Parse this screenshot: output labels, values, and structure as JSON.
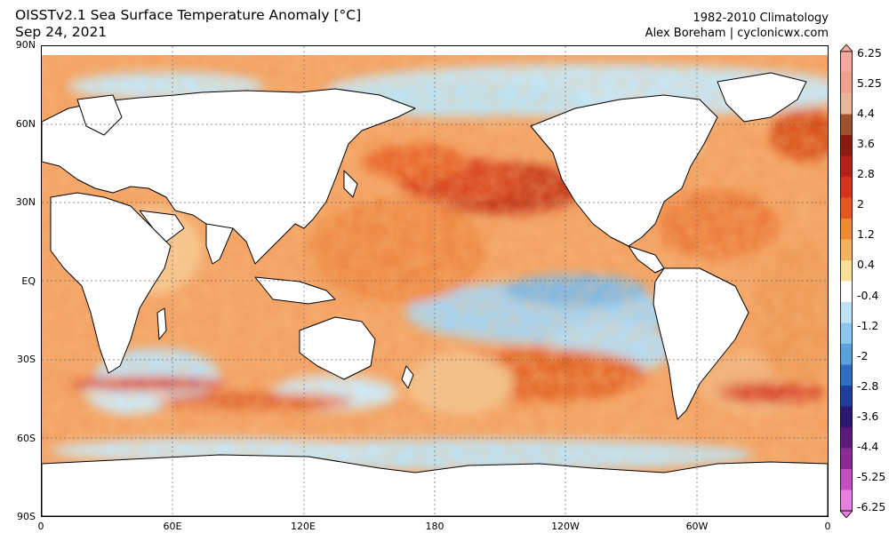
{
  "header": {
    "title": "OISSTv2.1 Sea Surface Temperature Anomaly [°C]",
    "date": "Sep 24, 2021",
    "climatology": "1982-2010 Climatology",
    "credit": "Alex Boreham | cyclonicwx.com"
  },
  "axes": {
    "lat_labels": [
      "90N",
      "60N",
      "30N",
      "EQ",
      "30S",
      "60S",
      "90S"
    ],
    "lon_labels": [
      "0",
      "60E",
      "120E",
      "180",
      "120W",
      "60W",
      "0"
    ]
  },
  "colorbar": {
    "labels": [
      "6.25",
      "5.25",
      "4.4",
      "3.6",
      "2.8",
      "2",
      "1.2",
      "0.4",
      "-0.4",
      "-1.2",
      "-2",
      "-2.8",
      "-3.6",
      "-4.4",
      "-5.25",
      "-6.25"
    ],
    "colors": [
      "#f5a7a0",
      "#ef9e92",
      "#e8b59d",
      "#a0522d",
      "#8b1a0f",
      "#b5201c",
      "#d6331e",
      "#e6571f",
      "#f08a30",
      "#f5b25c",
      "#fbe09a",
      "#ffffff",
      "#bfe3f5",
      "#8cc7ec",
      "#5aa2db",
      "#2e6fc0",
      "#1d3f9a",
      "#2a1770",
      "#5b1a7a",
      "#8e2a96",
      "#c24fc0",
      "#e680de"
    ]
  },
  "map": {
    "ocean_color": "#f2a35a",
    "land_color": "#ffffff",
    "coast_color": "#000000"
  }
}
